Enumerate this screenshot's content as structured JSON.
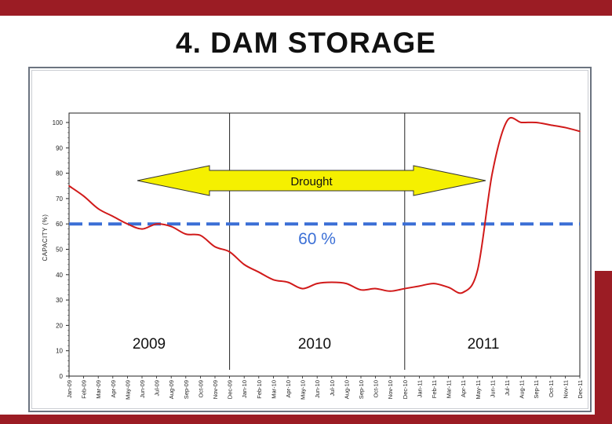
{
  "slide": {
    "title": "4.  DAM STORAGE",
    "accent_color": "#9b1c24"
  },
  "chart_data": {
    "type": "line",
    "title": "",
    "ylabel": "CAPACITY (%)",
    "xlabel": "",
    "ylim": [
      0,
      100
    ],
    "yticks": [
      0,
      10,
      20,
      30,
      40,
      50,
      60,
      70,
      80,
      90,
      100
    ],
    "grid": false,
    "x_tick_labels": [
      "Jan-09",
      "Feb-09",
      "Mar-09",
      "Apr-09",
      "May-09",
      "Jun-09",
      "Jul-09",
      "Aug-09",
      "Sep-09",
      "Oct-09",
      "Nov-09",
      "Dec-09",
      "Jan-10",
      "Feb-10",
      "Mar-10",
      "Apr-10",
      "May-10",
      "Jun-10",
      "Jul-10",
      "Aug-10",
      "Sep-10",
      "Oct-10",
      "Nov-10",
      "Dec-10",
      "Jan-11",
      "Feb-11",
      "Mar-11",
      "Apr-11",
      "May-11",
      "Jun-11",
      "Jul-11",
      "Aug-11",
      "Sep-11",
      "Oct-11",
      "Nov-11",
      "Dec-11"
    ],
    "year_labels": [
      "2009",
      "2010",
      "2011"
    ],
    "year_dividers_after": [
      "Dec-09",
      "Dec-10"
    ],
    "series": [
      {
        "color": "#d11a1a",
        "points": [
          [
            "Jan-09",
            75
          ],
          [
            "Feb-09",
            71
          ],
          [
            "Mar-09",
            66
          ],
          [
            "Apr-09",
            63
          ],
          [
            "May-09",
            60
          ],
          [
            "Jun-09",
            58
          ],
          [
            "Jul-09",
            60
          ],
          [
            "Aug-09",
            59
          ],
          [
            "Sep-09",
            56
          ],
          [
            "Oct-09",
            55.5
          ],
          [
            "Nov-09",
            51
          ],
          [
            "Dec-09",
            49
          ],
          [
            "Jan-10",
            44
          ],
          [
            "Feb-10",
            41
          ],
          [
            "Mar-10",
            38
          ],
          [
            "Apr-10",
            37
          ],
          [
            "May-10",
            34.5
          ],
          [
            "Jun-10",
            36.5
          ],
          [
            "Jul-10",
            37
          ],
          [
            "Aug-10",
            36.5
          ],
          [
            "Sep-10",
            34
          ],
          [
            "Oct-10",
            34.5
          ],
          [
            "Nov-10",
            33.5
          ],
          [
            "Dec-10",
            34.5
          ],
          [
            "Jan-11",
            35.5
          ],
          [
            "Feb-11",
            36.5
          ],
          [
            "Mar-11",
            35
          ],
          [
            "Apr-11",
            33
          ],
          [
            "May-11",
            42
          ],
          [
            "Jun-11",
            80
          ],
          [
            "Jul-11",
            100.5
          ],
          [
            "Aug-11",
            100
          ],
          [
            "Sep-11",
            100
          ],
          [
            "Oct-11",
            99
          ],
          [
            "Nov-11",
            98
          ],
          [
            "Dec-11",
            96.5
          ]
        ]
      }
    ],
    "reference_line": {
      "value": 60,
      "label": "60 %",
      "color": "#3b6fd6",
      "style": "dashed"
    },
    "annotations": [
      {
        "text": "Drought",
        "shape": "double-arrow",
        "color": "#f5f000",
        "from": "Jan-09",
        "to": "Jun-11",
        "level": 77
      }
    ]
  }
}
